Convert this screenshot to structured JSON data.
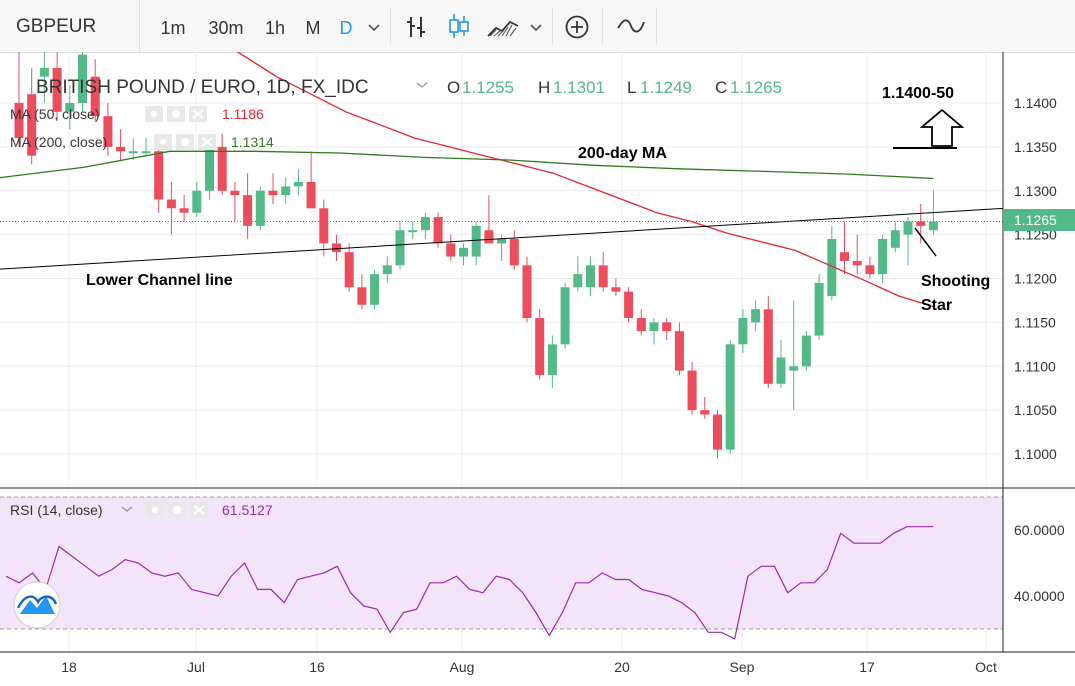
{
  "toolbar": {
    "symbol": "GBPEUR",
    "intervals": [
      "1m",
      "30m",
      "1h",
      "M",
      "D"
    ],
    "active_interval": "D",
    "icons": [
      "chevron-down-icon",
      "bar-style-icon",
      "candle-style-icon",
      "area-style-icon",
      "chevron-down-icon",
      "add-compare-icon",
      "indicators-icon"
    ]
  },
  "legend": {
    "title": "BRITISH POUND / EURO, 1D, FX_IDC",
    "o_label": "O",
    "o_value": "1.1255",
    "h_label": "H",
    "h_value": "1.1301",
    "l_label": "L",
    "l_value": "1.1249",
    "c_label": "C",
    "c_value": "1.1265",
    "ma50_label": "MA (50, close)",
    "ma50_value": "1.1186",
    "ma200_label": "MA (200, close)",
    "ma200_value": "1.1314",
    "rsi_label": "RSI (14, close)",
    "rsi_value": "61.5127"
  },
  "annotations": {
    "target": "1.1400-50",
    "ma200_note": "200-day MA",
    "channel_note": "Lower Channel line",
    "pattern_line1": "Shooting",
    "pattern_line2": "Star"
  },
  "last_price_label": "1.1265",
  "colors": {
    "up": "#53b987",
    "down": "#eb4d5c",
    "ma50": "#e5252b",
    "ma200": "#2f7a1f",
    "rsi": "#9c27b0",
    "rsi_band": "#f3e5f9",
    "channel": "#000000",
    "last_price": "#3a9d6e"
  },
  "chart_data": [
    {
      "type": "candlestick",
      "title": "BRITISH POUND / EURO, 1D, FX_IDC",
      "ylim": [
        1.0965,
        1.1465
      ],
      "y_ticks": [
        "1.1000",
        "1.1050",
        "1.1100",
        "1.1150",
        "1.1200",
        "1.1250",
        "1.1300",
        "1.1350",
        "1.1400"
      ],
      "x_tick_labels": [
        "18",
        "Jul",
        "16",
        "Aug",
        "20",
        "Sep",
        "17",
        "Oct"
      ],
      "grid": true,
      "candles": [
        {
          "o": 1.14,
          "h": 1.1465,
          "l": 1.135,
          "c": 1.136
        },
        {
          "o": 1.141,
          "h": 1.144,
          "l": 1.133,
          "c": 1.134
        },
        {
          "o": 1.143,
          "h": 1.1465,
          "l": 1.14,
          "c": 1.144
        },
        {
          "o": 1.144,
          "h": 1.1465,
          "l": 1.138,
          "c": 1.139
        },
        {
          "o": 1.139,
          "h": 1.142,
          "l": 1.137,
          "c": 1.14
        },
        {
          "o": 1.14,
          "h": 1.1465,
          "l": 1.139,
          "c": 1.1455
        },
        {
          "o": 1.143,
          "h": 1.145,
          "l": 1.138,
          "c": 1.1385
        },
        {
          "o": 1.1385,
          "h": 1.14,
          "l": 1.134,
          "c": 1.135
        },
        {
          "o": 1.135,
          "h": 1.137,
          "l": 1.1335,
          "c": 1.1345
        },
        {
          "o": 1.1345,
          "h": 1.136,
          "l": 1.1335,
          "c": 1.1345
        },
        {
          "o": 1.1345,
          "h": 1.136,
          "l": 1.134,
          "c": 1.1345
        },
        {
          "o": 1.1345,
          "h": 1.136,
          "l": 1.1275,
          "c": 1.129
        },
        {
          "o": 1.129,
          "h": 1.131,
          "l": 1.125,
          "c": 1.128
        },
        {
          "o": 1.128,
          "h": 1.1295,
          "l": 1.1265,
          "c": 1.1275
        },
        {
          "o": 1.1275,
          "h": 1.131,
          "l": 1.127,
          "c": 1.13
        },
        {
          "o": 1.13,
          "h": 1.136,
          "l": 1.129,
          "c": 1.135
        },
        {
          "o": 1.135,
          "h": 1.1365,
          "l": 1.1295,
          "c": 1.13
        },
        {
          "o": 1.13,
          "h": 1.131,
          "l": 1.1265,
          "c": 1.1295
        },
        {
          "o": 1.1295,
          "h": 1.132,
          "l": 1.1245,
          "c": 1.126
        },
        {
          "o": 1.126,
          "h": 1.1305,
          "l": 1.1255,
          "c": 1.13
        },
        {
          "o": 1.13,
          "h": 1.132,
          "l": 1.1285,
          "c": 1.1295
        },
        {
          "o": 1.1295,
          "h": 1.1315,
          "l": 1.1285,
          "c": 1.1305
        },
        {
          "o": 1.1305,
          "h": 1.1325,
          "l": 1.1295,
          "c": 1.131
        },
        {
          "o": 1.131,
          "h": 1.1345,
          "l": 1.128,
          "c": 1.128
        },
        {
          "o": 1.128,
          "h": 1.129,
          "l": 1.1225,
          "c": 1.124
        },
        {
          "o": 1.124,
          "h": 1.125,
          "l": 1.122,
          "c": 1.123
        },
        {
          "o": 1.123,
          "h": 1.124,
          "l": 1.1185,
          "c": 1.119
        },
        {
          "o": 1.119,
          "h": 1.1205,
          "l": 1.1165,
          "c": 1.117
        },
        {
          "o": 1.117,
          "h": 1.121,
          "l": 1.1165,
          "c": 1.1205
        },
        {
          "o": 1.1205,
          "h": 1.1225,
          "l": 1.1195,
          "c": 1.1215
        },
        {
          "o": 1.1215,
          "h": 1.1265,
          "l": 1.121,
          "c": 1.1255
        },
        {
          "o": 1.1255,
          "h": 1.1265,
          "l": 1.1245,
          "c": 1.1255
        },
        {
          "o": 1.1255,
          "h": 1.1275,
          "l": 1.1245,
          "c": 1.127
        },
        {
          "o": 1.127,
          "h": 1.1275,
          "l": 1.1235,
          "c": 1.124
        },
        {
          "o": 1.124,
          "h": 1.125,
          "l": 1.122,
          "c": 1.1225
        },
        {
          "o": 1.1225,
          "h": 1.124,
          "l": 1.1215,
          "c": 1.1235
        },
        {
          "o": 1.1225,
          "h": 1.1265,
          "l": 1.1215,
          "c": 1.126
        },
        {
          "o": 1.1255,
          "h": 1.1295,
          "l": 1.124,
          "c": 1.124
        },
        {
          "o": 1.124,
          "h": 1.125,
          "l": 1.122,
          "c": 1.1245
        },
        {
          "o": 1.1245,
          "h": 1.1255,
          "l": 1.121,
          "c": 1.1215
        },
        {
          "o": 1.1215,
          "h": 1.1225,
          "l": 1.115,
          "c": 1.1155
        },
        {
          "o": 1.1155,
          "h": 1.1165,
          "l": 1.1085,
          "c": 1.109
        },
        {
          "o": 1.109,
          "h": 1.1135,
          "l": 1.1075,
          "c": 1.1125
        },
        {
          "o": 1.1125,
          "h": 1.1195,
          "l": 1.112,
          "c": 1.119
        },
        {
          "o": 1.119,
          "h": 1.1225,
          "l": 1.1185,
          "c": 1.1205
        },
        {
          "o": 1.119,
          "h": 1.1225,
          "l": 1.118,
          "c": 1.1215
        },
        {
          "o": 1.1215,
          "h": 1.123,
          "l": 1.1185,
          "c": 1.119
        },
        {
          "o": 1.119,
          "h": 1.12,
          "l": 1.118,
          "c": 1.1185
        },
        {
          "o": 1.1185,
          "h": 1.119,
          "l": 1.115,
          "c": 1.1155
        },
        {
          "o": 1.1155,
          "h": 1.1165,
          "l": 1.1135,
          "c": 1.114
        },
        {
          "o": 1.114,
          "h": 1.1155,
          "l": 1.1125,
          "c": 1.115
        },
        {
          "o": 1.115,
          "h": 1.1155,
          "l": 1.113,
          "c": 1.114
        },
        {
          "o": 1.114,
          "h": 1.115,
          "l": 1.109,
          "c": 1.1095
        },
        {
          "o": 1.1095,
          "h": 1.1105,
          "l": 1.1045,
          "c": 1.105
        },
        {
          "o": 1.105,
          "h": 1.1065,
          "l": 1.104,
          "c": 1.1045
        },
        {
          "o": 1.1045,
          "h": 1.105,
          "l": 1.0995,
          "c": 1.1005
        },
        {
          "o": 1.1005,
          "h": 1.113,
          "l": 1.1,
          "c": 1.1125
        },
        {
          "o": 1.1125,
          "h": 1.1165,
          "l": 1.1115,
          "c": 1.1155
        },
        {
          "o": 1.115,
          "h": 1.1175,
          "l": 1.114,
          "c": 1.1165
        },
        {
          "o": 1.1165,
          "h": 1.118,
          "l": 1.1075,
          "c": 1.108
        },
        {
          "o": 1.108,
          "h": 1.113,
          "l": 1.1075,
          "c": 1.111
        },
        {
          "o": 1.1095,
          "h": 1.1175,
          "l": 1.105,
          "c": 1.11
        },
        {
          "o": 1.11,
          "h": 1.114,
          "l": 1.1095,
          "c": 1.1135
        },
        {
          "o": 1.1135,
          "h": 1.1205,
          "l": 1.113,
          "c": 1.1195
        },
        {
          "o": 1.118,
          "h": 1.126,
          "l": 1.1175,
          "c": 1.1245
        },
        {
          "o": 1.123,
          "h": 1.1265,
          "l": 1.1205,
          "c": 1.122
        },
        {
          "o": 1.122,
          "h": 1.125,
          "l": 1.1205,
          "c": 1.1215
        },
        {
          "o": 1.1215,
          "h": 1.1225,
          "l": 1.12,
          "c": 1.1205
        },
        {
          "o": 1.1205,
          "h": 1.125,
          "l": 1.1195,
          "c": 1.1245
        },
        {
          "o": 1.1235,
          "h": 1.1265,
          "l": 1.123,
          "c": 1.1255
        },
        {
          "o": 1.125,
          "h": 1.127,
          "l": 1.1215,
          "c": 1.1265
        },
        {
          "o": 1.1265,
          "h": 1.1285,
          "l": 1.124,
          "c": 1.126
        },
        {
          "o": 1.1255,
          "h": 1.1301,
          "l": 1.1249,
          "c": 1.1265
        }
      ],
      "ma50": [
        1.158,
        1.156,
        1.1545,
        1.1525,
        1.151,
        1.1495,
        1.148,
        1.1455,
        1.143,
        1.141,
        1.139,
        1.1375,
        1.136,
        1.135,
        1.134,
        1.133,
        1.132,
        1.1305,
        1.129,
        1.1275,
        1.1265,
        1.1252,
        1.1242,
        1.1232,
        1.1215,
        1.1198,
        1.118,
        1.1168
      ],
      "ma200": [
        1.1315,
        1.1327,
        1.1345,
        1.1345,
        1.1343,
        1.1338,
        1.1335,
        1.1329,
        1.1325,
        1.1322,
        1.1319,
        1.1314
      ],
      "channel_line": [
        [
          0,
          1.1212
        ],
        [
          73,
          1.1276
        ]
      ],
      "last_price": 1.1265
    },
    {
      "type": "line",
      "title": "RSI (14, close)",
      "ylim": [
        25,
        75
      ],
      "y_ticks": [
        "40.0000",
        "60.0000"
      ],
      "band": [
        30,
        70
      ],
      "values": [
        46,
        44,
        47,
        42,
        55,
        52,
        49,
        46,
        48,
        51,
        50,
        47,
        46,
        47,
        42,
        41,
        40,
        46,
        50,
        42,
        42,
        38,
        45,
        46,
        47,
        49,
        41,
        37,
        36,
        29,
        35,
        36,
        44,
        44,
        46,
        42,
        41,
        46,
        45,
        41,
        35,
        28,
        35,
        44,
        44,
        47,
        45,
        45,
        42,
        41,
        40,
        38,
        35,
        29,
        29,
        27,
        46,
        49,
        49,
        41,
        44,
        44,
        48,
        59,
        56,
        56,
        56,
        59,
        61,
        61,
        61
      ]
    }
  ]
}
